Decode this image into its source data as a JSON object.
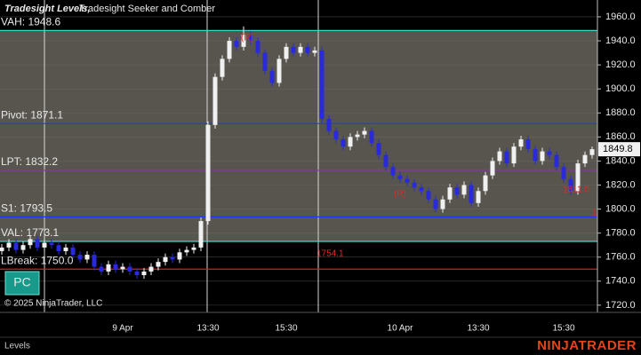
{
  "chart_data": {
    "type": "candlestick",
    "title": [
      "Tradesight Levels,",
      "Tradesight Seeker and Comber"
    ],
    "categories": [
      null,
      null,
      null,
      null,
      null,
      null,
      null,
      null,
      null,
      null,
      null,
      null,
      null,
      null,
      null,
      null,
      null,
      "9 Apr",
      null,
      null,
      null,
      null,
      null,
      null,
      null,
      null,
      null,
      null,
      null,
      "13:30",
      null,
      null,
      null,
      null,
      null,
      null,
      null,
      null,
      null,
      null,
      "15:30",
      null,
      null,
      null,
      null,
      null,
      null,
      null,
      null,
      null,
      null,
      null,
      null,
      null,
      null,
      null,
      "10 Apr",
      null,
      null,
      null,
      null,
      null,
      null,
      null,
      null,
      null,
      null,
      "13:30",
      null,
      null,
      null,
      null,
      null,
      null,
      null,
      null,
      null,
      null,
      null,
      "15:30",
      null,
      null,
      null,
      null
    ],
    "open": [
      1765,
      1768,
      1772,
      1766,
      1770,
      1775,
      1768,
      1772,
      1770,
      1765,
      1768,
      1762,
      1758,
      1762,
      1752,
      1748,
      1754,
      1750,
      1752,
      1748,
      1745,
      1748,
      1752,
      1756,
      1760,
      1758,
      1764,
      1766,
      1768,
      1790,
      1870,
      1910,
      1925,
      1940,
      1935,
      1945,
      1940,
      1930,
      1915,
      1905,
      1925,
      1935,
      1930,
      1935,
      1930,
      1932,
      1875,
      1865,
      1858,
      1852,
      1860,
      1862,
      1865,
      1855,
      1845,
      1835,
      1828,
      1825,
      1822,
      1818,
      1815,
      1808,
      1800,
      1808,
      1818,
      1812,
      1820,
      1805,
      1815,
      1828,
      1840,
      1848,
      1838,
      1852,
      1858,
      1850,
      1840,
      1848,
      1845,
      1835,
      1825,
      1815,
      1838,
      1845
    ],
    "high": [
      1771,
      1775,
      1775,
      1773,
      1778,
      1778,
      1775,
      1775,
      1773,
      1771,
      1771,
      1765,
      1765,
      1765,
      1755,
      1757,
      1757,
      1755,
      1755,
      1751,
      1751,
      1755,
      1759,
      1763,
      1763,
      1767,
      1769,
      1771,
      1793,
      1873,
      1913,
      1928,
      1943,
      1943,
      1952,
      1948,
      1943,
      1933,
      1918,
      1928,
      1938,
      1938,
      1938,
      1938,
      1935,
      1935,
      1878,
      1868,
      1861,
      1863,
      1865,
      1868,
      1868,
      1858,
      1848,
      1838,
      1831,
      1828,
      1825,
      1821,
      1818,
      1811,
      1811,
      1821,
      1821,
      1823,
      1823,
      1818,
      1831,
      1843,
      1851,
      1851,
      1855,
      1861,
      1861,
      1853,
      1851,
      1851,
      1848,
      1838,
      1828,
      1841,
      1848,
      1852
    ],
    "low": [
      1762,
      1765,
      1763,
      1763,
      1767,
      1765,
      1765,
      1767,
      1762,
      1762,
      1759,
      1755,
      1755,
      1749,
      1745,
      1745,
      1747,
      1747,
      1745,
      1742,
      1742,
      1745,
      1749,
      1753,
      1755,
      1755,
      1761,
      1763,
      1765,
      1787,
      1867,
      1907,
      1922,
      1932,
      1932,
      1937,
      1927,
      1912,
      1902,
      1902,
      1922,
      1927,
      1927,
      1927,
      1927,
      1872,
      1862,
      1855,
      1849,
      1849,
      1857,
      1859,
      1852,
      1842,
      1832,
      1825,
      1822,
      1819,
      1815,
      1812,
      1805,
      1797,
      1797,
      1805,
      1809,
      1809,
      1802,
      1802,
      1812,
      1825,
      1837,
      1835,
      1835,
      1849,
      1847,
      1837,
      1837,
      1842,
      1832,
      1822,
      1812,
      1812,
      1835,
      1842
    ],
    "close": [
      1768,
      1772,
      1766,
      1770,
      1775,
      1768,
      1772,
      1770,
      1765,
      1768,
      1762,
      1758,
      1762,
      1752,
      1748,
      1754,
      1750,
      1752,
      1748,
      1745,
      1748,
      1752,
      1756,
      1760,
      1758,
      1764,
      1766,
      1768,
      1790,
      1870,
      1910,
      1925,
      1940,
      1935,
      1945,
      1940,
      1930,
      1915,
      1905,
      1925,
      1935,
      1930,
      1935,
      1930,
      1932,
      1875,
      1865,
      1858,
      1852,
      1860,
      1862,
      1865,
      1855,
      1845,
      1835,
      1828,
      1825,
      1822,
      1818,
      1815,
      1808,
      1800,
      1808,
      1818,
      1812,
      1820,
      1805,
      1815,
      1828,
      1840,
      1848,
      1838,
      1852,
      1858,
      1850,
      1840,
      1848,
      1845,
      1835,
      1825,
      1815,
      1838,
      1845,
      1849.8
    ],
    "up_color": "#f0f0f0",
    "down_color": "#2a2ad8",
    "ylim": [
      1714,
      1974
    ],
    "yticks": [
      {
        "value": 1720,
        "label": "1720.0"
      },
      {
        "value": 1740,
        "label": "1740.0"
      },
      {
        "value": 1760,
        "label": "1760.0"
      },
      {
        "value": 1780,
        "label": "1780.0"
      },
      {
        "value": 1800,
        "label": "1800.0"
      },
      {
        "value": 1820,
        "label": "1820.0"
      },
      {
        "value": 1840,
        "label": "1840.0"
      },
      {
        "value": 1860,
        "label": "1860.0"
      },
      {
        "value": 1880,
        "label": "1880.0"
      },
      {
        "value": 1900,
        "label": "1900.0"
      },
      {
        "value": 1920,
        "label": "1920.0"
      },
      {
        "value": 1940,
        "label": "1940.0"
      },
      {
        "value": 1960,
        "label": "1960.0"
      }
    ],
    "grid": true,
    "levels": [
      {
        "label": "VAH: 1948.6",
        "value": 1948.6,
        "color": "#3fd6cc"
      },
      {
        "label": "Pivot: 1871.1",
        "value": 1871.1,
        "color": "#2434ff"
      },
      {
        "label": "LPT: 1832.2",
        "value": 1832.2,
        "color": "#8a34a8"
      },
      {
        "label": "S1: 1793.5",
        "value": 1793.5,
        "color": "#2434ff"
      },
      {
        "label": "VAL: 1773.1",
        "value": 1773.1,
        "color": "#3fd6cc"
      },
      {
        "label": "LBreak: 1750.0",
        "value": 1750.0,
        "color": "#d42020"
      }
    ],
    "value_area_color": "#57554d",
    "annotations": [
      "1754.1",
      "1811.0",
      "(R)",
      "(R)",
      "1"
    ],
    "copyright": "© 2025 NinjaTrader, LLC",
    "button": "PC",
    "tab": "Levels",
    "brand": "NINJATRADER"
  }
}
